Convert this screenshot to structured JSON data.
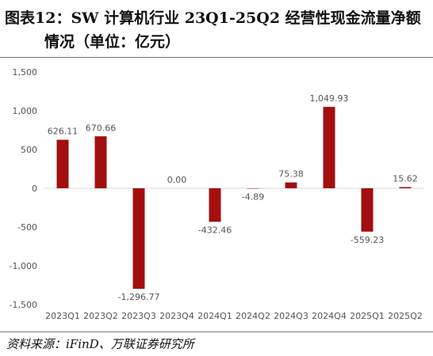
{
  "header": {
    "title_line1": "图表12：SW 计算机行业 23Q1-25Q2 经营性现金流量净额",
    "title_line2": "情况（单位：亿元）"
  },
  "chart_data": {
    "type": "bar",
    "title": "",
    "xlabel": "",
    "ylabel": "",
    "categories": [
      "2023Q1",
      "2023Q2",
      "2023Q3",
      "2023Q4",
      "2024Q1",
      "2024Q2",
      "2024Q3",
      "2024Q4",
      "2025Q1",
      "2025Q2"
    ],
    "values": [
      626.11,
      670.66,
      -1296.77,
      0.0,
      -432.46,
      -4.89,
      75.38,
      1049.93,
      -559.23,
      15.62
    ],
    "value_labels": [
      "626.11",
      "670.66",
      "-1,296.77",
      "0.00",
      "-432.46",
      "-4.89",
      "75.38",
      "1,049.93",
      "-559.23",
      "15.62"
    ],
    "ylim": [
      -1500,
      1500
    ],
    "yticks": [
      -1500,
      -1000,
      -500,
      0,
      500,
      1000,
      1500
    ],
    "ytick_labels": [
      "-1,500",
      "-1,000",
      "-500",
      "0",
      "500",
      "1,000",
      "1,500"
    ],
    "bar_color": "#a30f0f",
    "grid": false,
    "legend": "none"
  },
  "footer": {
    "source": "资料来源：iFinD、万联证券研究所"
  }
}
